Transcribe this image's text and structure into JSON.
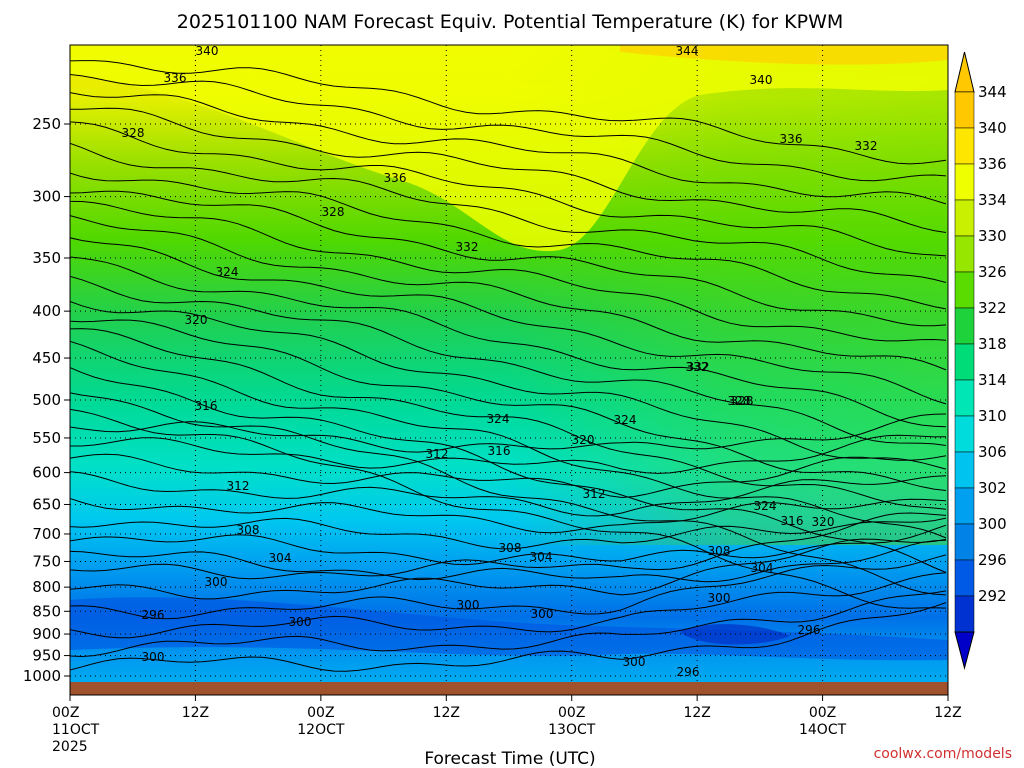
{
  "chart_data": {
    "type": "heatmap",
    "title": "2025101100 NAM Forecast Equiv. Potential Temperature (K) for KPWM",
    "xlabel": "Forecast Time (UTC)",
    "ylabel": "",
    "credit": "coolwx.com/models",
    "y_scale": "pressure (hPa), log-like, inverted",
    "y_ticks": [
      "250",
      "300",
      "350",
      "400",
      "450",
      "500",
      "550",
      "600",
      "650",
      "700",
      "750",
      "800",
      "850",
      "900",
      "950",
      "1000"
    ],
    "x_ticks": [
      {
        "line1": "00Z",
        "line2": "11OCT",
        "line3": "2025"
      },
      {
        "line1": "12Z",
        "line2": "",
        "line3": ""
      },
      {
        "line1": "00Z",
        "line2": "12OCT",
        "line3": ""
      },
      {
        "line1": "12Z",
        "line2": "",
        "line3": ""
      },
      {
        "line1": "00Z",
        "line2": "13OCT",
        "line3": ""
      },
      {
        "line1": "12Z",
        "line2": "",
        "line3": ""
      },
      {
        "line1": "00Z",
        "line2": "14OCT",
        "line3": ""
      },
      {
        "line1": "12Z",
        "line2": "",
        "line3": ""
      }
    ],
    "colorbar": {
      "labels": [
        "344",
        "340",
        "336",
        "334",
        "330",
        "326",
        "322",
        "318",
        "314",
        "310",
        "306",
        "302",
        "300",
        "296",
        "292"
      ],
      "colors": [
        "#ffc800",
        "#ffe600",
        "#f0ff00",
        "#c8f000",
        "#96e600",
        "#5adc00",
        "#1ed23c",
        "#00dc78",
        "#00e6b4",
        "#00dcdc",
        "#00c3f0",
        "#00a0f0",
        "#0082e6",
        "#005ae6",
        "#0032d2"
      ]
    },
    "contour_labels": [
      "340",
      "336",
      "328",
      "328",
      "324",
      "320",
      "316",
      "312",
      "308",
      "304",
      "300",
      "296",
      "300",
      "300",
      "336",
      "332",
      "332",
      "328",
      "324",
      "324",
      "316",
      "320",
      "312",
      "308",
      "304",
      "300",
      "300",
      "300",
      "344",
      "340",
      "336",
      "332",
      "332",
      "328",
      "324",
      "316",
      "320",
      "312",
      "308",
      "304",
      "300",
      "296",
      "296"
    ],
    "grid": true,
    "ground": "brown band at 1000 hPa"
  }
}
